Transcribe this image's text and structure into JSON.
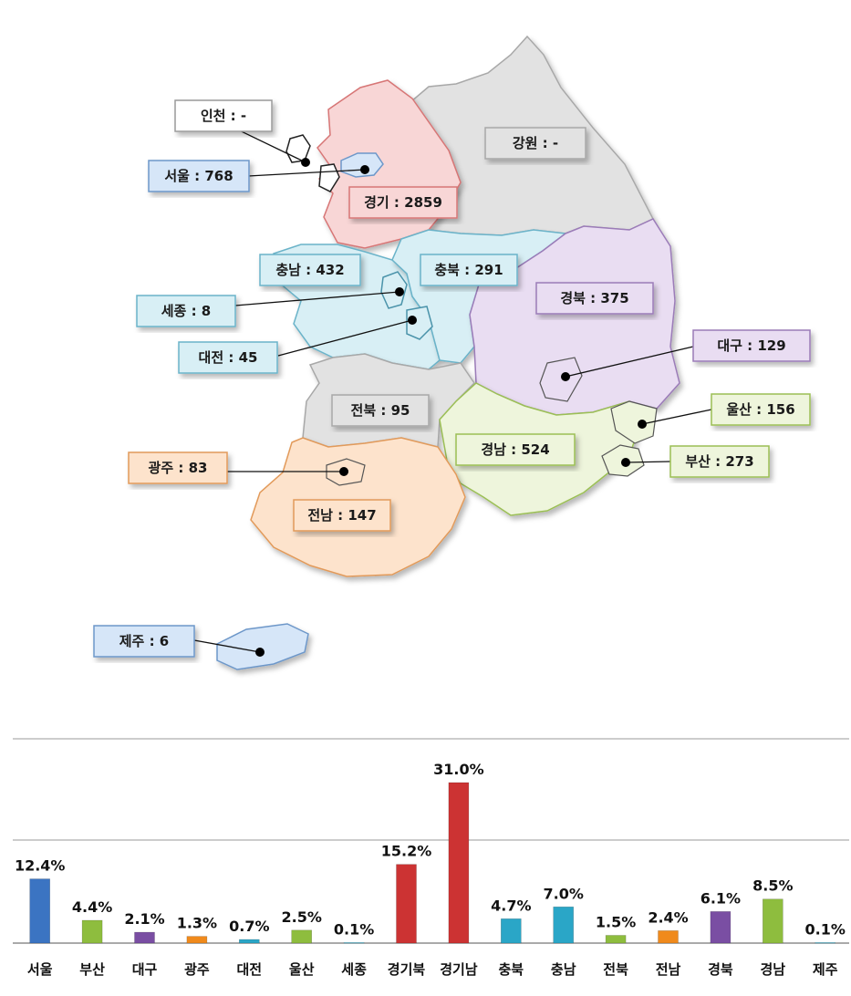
{
  "map": {
    "regions": [
      {
        "id": "incheon",
        "text": "인천 : -",
        "fill": "#ffffff",
        "border": "#9a9a9a"
      },
      {
        "id": "gangwon",
        "text": "강원 : -",
        "fill": "#e2e2e2",
        "border": "#a8a8a8"
      },
      {
        "id": "seoul",
        "text": "서울 : 768",
        "fill": "#d6e6f8",
        "border": "#6d97c9"
      },
      {
        "id": "gyeonggi",
        "text": "경기 : 2859",
        "fill": "#f8d6d6",
        "border": "#d77676"
      },
      {
        "id": "chungnam",
        "text": "충남 : 432",
        "fill": "#d8eff5",
        "border": "#6bb3c9"
      },
      {
        "id": "chungbuk",
        "text": "충북 : 291",
        "fill": "#d8eff5",
        "border": "#6bb3c9"
      },
      {
        "id": "sejong",
        "text": "세종 : 8",
        "fill": "#d8eff5",
        "border": "#6bb3c9"
      },
      {
        "id": "gyeongbuk",
        "text": "경북 : 375",
        "fill": "#e9ddf2",
        "border": "#9b7bb8"
      },
      {
        "id": "daejeon",
        "text": "대전 : 45",
        "fill": "#d8eff5",
        "border": "#6bb3c9"
      },
      {
        "id": "daegu",
        "text": "대구 : 129",
        "fill": "#e9ddf2",
        "border": "#9b7bb8"
      },
      {
        "id": "jeonbuk",
        "text": "전북 : 95",
        "fill": "#e2e2e2",
        "border": "#a8a8a8"
      },
      {
        "id": "ulsan",
        "text": "울산 : 156",
        "fill": "#eef5dc",
        "border": "#9bbf55"
      },
      {
        "id": "gyeongnam",
        "text": "경남 : 524",
        "fill": "#eef5dc",
        "border": "#9bbf55"
      },
      {
        "id": "busan",
        "text": "부산 : 273",
        "fill": "#eef5dc",
        "border": "#9bbf55"
      },
      {
        "id": "gwangju",
        "text": "광주 : 83",
        "fill": "#fde3cc",
        "border": "#e29a5a"
      },
      {
        "id": "jeonnam",
        "text": "전남 : 147",
        "fill": "#fde3cc",
        "border": "#e29a5a"
      },
      {
        "id": "jeju",
        "text": "제주 : 6",
        "fill": "#d6e6f8",
        "border": "#6d97c9"
      }
    ]
  },
  "chart_data": {
    "type": "bar",
    "categories": [
      "서울",
      "부산",
      "대구",
      "광주",
      "대전",
      "울산",
      "세종",
      "경기북",
      "경기남",
      "충북",
      "충남",
      "전북",
      "전남",
      "경북",
      "경남",
      "제주"
    ],
    "values": [
      12.4,
      4.4,
      2.1,
      1.3,
      0.7,
      2.5,
      0.1,
      15.2,
      31.0,
      4.7,
      7.0,
      1.5,
      2.4,
      6.1,
      8.5,
      0.1
    ],
    "value_labels": [
      "12.4%",
      "4.4%",
      "2.1%",
      "1.3%",
      "0.7%",
      "2.5%",
      "0.1%",
      "15.2%",
      "31.0%",
      "4.7%",
      "7.0%",
      "1.5%",
      "2.4%",
      "6.1%",
      "8.5%",
      "0.1%"
    ],
    "colors": [
      "#3b74c2",
      "#8ebd3e",
      "#7a4ea3",
      "#f08a1c",
      "#2aa6c7",
      "#8ebd3e",
      "#2aa6c7",
      "#cc3333",
      "#cc3333",
      "#2aa6c7",
      "#2aa6c7",
      "#8ebd3e",
      "#f08a1c",
      "#7a4ea3",
      "#8ebd3e",
      "#2aa6c7"
    ],
    "title": "",
    "xlabel": "",
    "ylabel": "",
    "ylim": [
      0,
      31
    ],
    "grid": true
  }
}
